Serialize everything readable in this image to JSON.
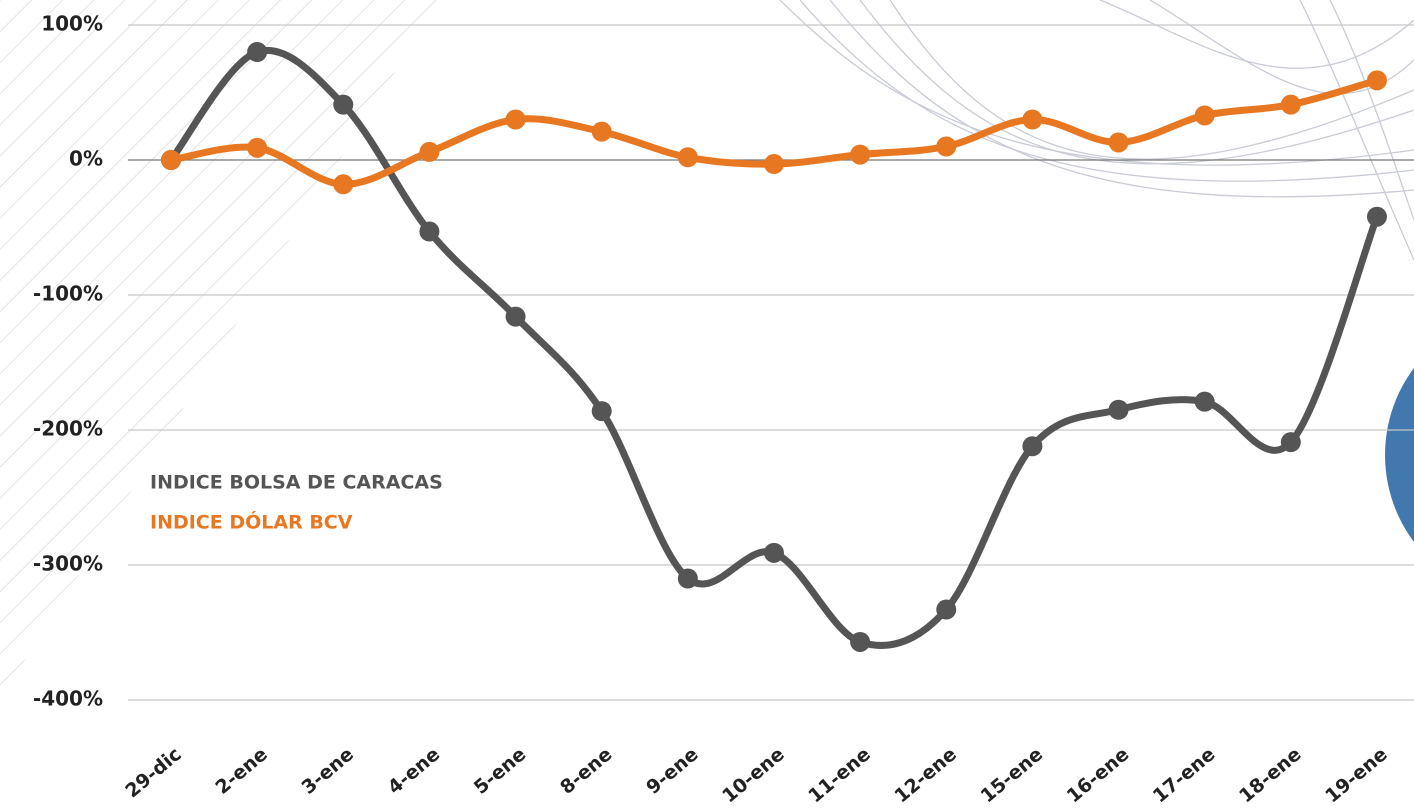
{
  "chart_data": {
    "type": "line",
    "categories": [
      "29-dic",
      "2-ene",
      "3-ene",
      "4-ene",
      "5-ene",
      "8-ene",
      "9-ene",
      "10-ene",
      "11-ene",
      "12-ene",
      "15-ene",
      "16-ene",
      "17-ene",
      "18-ene",
      "19-ene"
    ],
    "series": [
      {
        "name": "INDICE BOLSA DE CARACAS",
        "color": "#555555",
        "values": [
          0,
          80,
          41,
          -53,
          -116,
          -186,
          -310,
          -291,
          -357,
          -333,
          -212,
          -185,
          -179,
          -209,
          -42
        ]
      },
      {
        "name": "INDICE DÓLAR BCV",
        "color": "#e87722",
        "values": [
          0,
          9,
          -18,
          6,
          30,
          21,
          2,
          -3,
          4,
          10,
          30,
          13,
          33,
          41,
          59
        ]
      }
    ],
    "ylim": [
      -400,
      100
    ],
    "yticks": [
      {
        "value": -400,
        "label": "-400%"
      },
      {
        "value": -300,
        "label": "-300%"
      },
      {
        "value": -200,
        "label": "-200%"
      },
      {
        "value": -100,
        "label": "-100%"
      },
      {
        "value": 0,
        "label": "0%"
      },
      {
        "value": 100,
        "label": "100%"
      }
    ],
    "grid": true
  }
}
